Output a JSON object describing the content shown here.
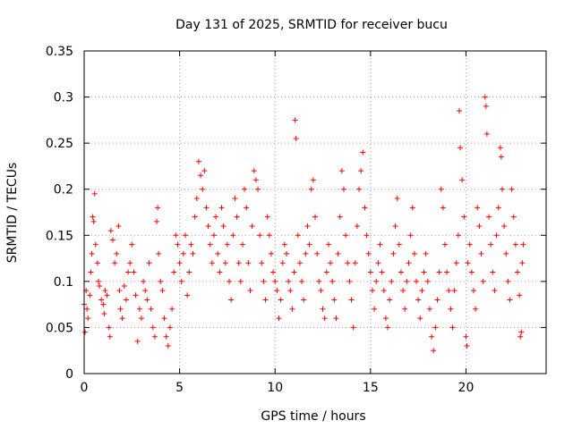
{
  "chart_data": {
    "type": "scatter",
    "title": "Day 131 of 2025, SRMTID for receiver bucu",
    "xlabel": "GPS time / hours",
    "ylabel": "SRMTID / TECUs",
    "xlim": [
      0,
      24.2
    ],
    "ylim": [
      0,
      0.35
    ],
    "x_ticks": [
      0,
      5,
      10,
      15,
      20
    ],
    "x_tick_labels": [
      "0",
      "5",
      "10",
      "15",
      "20"
    ],
    "y_ticks": [
      0,
      0.05,
      0.1,
      0.15,
      0.2,
      0.25,
      0.3,
      0.35
    ],
    "y_tick_labels": [
      "0",
      "0.05",
      "0.1",
      "0.15",
      "0.2",
      "0.25",
      "0.3",
      "0.35"
    ],
    "grid": true,
    "marker": "plus",
    "color": "#ff0000",
    "series": [
      {
        "name": "SRMTID",
        "points": [
          [
            0.0,
            0.075
          ],
          [
            0.05,
            0.045
          ],
          [
            0.1,
            0.09
          ],
          [
            0.15,
            0.07
          ],
          [
            0.2,
            0.06
          ],
          [
            0.3,
            0.085
          ],
          [
            0.35,
            0.11
          ],
          [
            0.4,
            0.13
          ],
          [
            0.45,
            0.17
          ],
          [
            0.5,
            0.165
          ],
          [
            0.55,
            0.195
          ],
          [
            0.6,
            0.14
          ],
          [
            0.7,
            0.12
          ],
          [
            0.75,
            0.1
          ],
          [
            0.8,
            0.095
          ],
          [
            0.9,
            0.08
          ],
          [
            1.0,
            0.075
          ],
          [
            1.05,
            0.065
          ],
          [
            1.1,
            0.09
          ],
          [
            1.2,
            0.085
          ],
          [
            1.3,
            0.05
          ],
          [
            1.35,
            0.04
          ],
          [
            1.4,
            0.155
          ],
          [
            1.5,
            0.145
          ],
          [
            1.6,
            0.12
          ],
          [
            1.7,
            0.13
          ],
          [
            1.8,
            0.16
          ],
          [
            1.85,
            0.09
          ],
          [
            1.9,
            0.07
          ],
          [
            2.0,
            0.06
          ],
          [
            2.1,
            0.095
          ],
          [
            2.2,
            0.08
          ],
          [
            2.3,
            0.11
          ],
          [
            2.4,
            0.12
          ],
          [
            2.5,
            0.14
          ],
          [
            2.6,
            0.11
          ],
          [
            2.7,
            0.085
          ],
          [
            2.8,
            0.035
          ],
          [
            2.9,
            0.07
          ],
          [
            3.0,
            0.06
          ],
          [
            3.1,
            0.1
          ],
          [
            3.2,
            0.09
          ],
          [
            3.3,
            0.08
          ],
          [
            3.4,
            0.12
          ],
          [
            3.5,
            0.07
          ],
          [
            3.6,
            0.05
          ],
          [
            3.7,
            0.04
          ],
          [
            3.8,
            0.165
          ],
          [
            3.85,
            0.18
          ],
          [
            3.9,
            0.13
          ],
          [
            4.0,
            0.1
          ],
          [
            4.1,
            0.09
          ],
          [
            4.2,
            0.06
          ],
          [
            4.3,
            0.04
          ],
          [
            4.4,
            0.03
          ],
          [
            4.5,
            0.05
          ],
          [
            4.6,
            0.07
          ],
          [
            4.7,
            0.11
          ],
          [
            4.8,
            0.15
          ],
          [
            4.9,
            0.14
          ],
          [
            5.0,
            0.12
          ],
          [
            5.1,
            0.1
          ],
          [
            5.2,
            0.13
          ],
          [
            5.3,
            0.15
          ],
          [
            5.4,
            0.085
          ],
          [
            5.5,
            0.11
          ],
          [
            5.6,
            0.14
          ],
          [
            5.7,
            0.13
          ],
          [
            5.8,
            0.17
          ],
          [
            5.9,
            0.19
          ],
          [
            6.0,
            0.23
          ],
          [
            6.1,
            0.215
          ],
          [
            6.2,
            0.2
          ],
          [
            6.3,
            0.22
          ],
          [
            6.4,
            0.18
          ],
          [
            6.5,
            0.16
          ],
          [
            6.6,
            0.14
          ],
          [
            6.7,
            0.12
          ],
          [
            6.8,
            0.15
          ],
          [
            6.9,
            0.17
          ],
          [
            7.0,
            0.13
          ],
          [
            7.1,
            0.11
          ],
          [
            7.2,
            0.18
          ],
          [
            7.3,
            0.16
          ],
          [
            7.4,
            0.12
          ],
          [
            7.5,
            0.14
          ],
          [
            7.6,
            0.1
          ],
          [
            7.7,
            0.08
          ],
          [
            7.8,
            0.15
          ],
          [
            7.9,
            0.19
          ],
          [
            8.0,
            0.17
          ],
          [
            8.1,
            0.12
          ],
          [
            8.2,
            0.1
          ],
          [
            8.3,
            0.14
          ],
          [
            8.4,
            0.2
          ],
          [
            8.5,
            0.18
          ],
          [
            8.6,
            0.12
          ],
          [
            8.7,
            0.09
          ],
          [
            8.8,
            0.16
          ],
          [
            8.9,
            0.22
          ],
          [
            9.0,
            0.21
          ],
          [
            9.1,
            0.2
          ],
          [
            9.2,
            0.15
          ],
          [
            9.3,
            0.12
          ],
          [
            9.4,
            0.1
          ],
          [
            9.5,
            0.08
          ],
          [
            9.6,
            0.17
          ],
          [
            9.7,
            0.15
          ],
          [
            9.8,
            0.13
          ],
          [
            9.9,
            0.11
          ],
          [
            10.0,
            0.1
          ],
          [
            10.1,
            0.09
          ],
          [
            10.2,
            0.06
          ],
          [
            10.3,
            0.08
          ],
          [
            10.4,
            0.12
          ],
          [
            10.5,
            0.14
          ],
          [
            10.6,
            0.13
          ],
          [
            10.7,
            0.1
          ],
          [
            10.8,
            0.09
          ],
          [
            10.9,
            0.07
          ],
          [
            11.0,
            0.11
          ],
          [
            11.05,
            0.275
          ],
          [
            11.1,
            0.255
          ],
          [
            11.2,
            0.15
          ],
          [
            11.3,
            0.12
          ],
          [
            11.4,
            0.1
          ],
          [
            11.5,
            0.08
          ],
          [
            11.6,
            0.13
          ],
          [
            11.7,
            0.16
          ],
          [
            11.8,
            0.14
          ],
          [
            11.9,
            0.2
          ],
          [
            12.0,
            0.21
          ],
          [
            12.1,
            0.17
          ],
          [
            12.2,
            0.13
          ],
          [
            12.3,
            0.1
          ],
          [
            12.4,
            0.09
          ],
          [
            12.5,
            0.07
          ],
          [
            12.6,
            0.06
          ],
          [
            12.7,
            0.11
          ],
          [
            12.8,
            0.14
          ],
          [
            12.9,
            0.12
          ],
          [
            13.0,
            0.1
          ],
          [
            13.1,
            0.08
          ],
          [
            13.2,
            0.06
          ],
          [
            13.3,
            0.13
          ],
          [
            13.4,
            0.17
          ],
          [
            13.5,
            0.22
          ],
          [
            13.6,
            0.2
          ],
          [
            13.7,
            0.15
          ],
          [
            13.8,
            0.12
          ],
          [
            13.9,
            0.1
          ],
          [
            14.0,
            0.08
          ],
          [
            14.1,
            0.05
          ],
          [
            14.2,
            0.12
          ],
          [
            14.3,
            0.16
          ],
          [
            14.4,
            0.2
          ],
          [
            14.5,
            0.22
          ],
          [
            14.6,
            0.24
          ],
          [
            14.7,
            0.18
          ],
          [
            14.8,
            0.15
          ],
          [
            14.9,
            0.13
          ],
          [
            15.0,
            0.11
          ],
          [
            15.1,
            0.09
          ],
          [
            15.2,
            0.07
          ],
          [
            15.3,
            0.1
          ],
          [
            15.4,
            0.12
          ],
          [
            15.5,
            0.14
          ],
          [
            15.6,
            0.11
          ],
          [
            15.7,
            0.09
          ],
          [
            15.8,
            0.06
          ],
          [
            15.9,
            0.05
          ],
          [
            16.0,
            0.08
          ],
          [
            16.1,
            0.1
          ],
          [
            16.2,
            0.13
          ],
          [
            16.3,
            0.16
          ],
          [
            16.4,
            0.19
          ],
          [
            16.5,
            0.14
          ],
          [
            16.6,
            0.11
          ],
          [
            16.7,
            0.09
          ],
          [
            16.8,
            0.07
          ],
          [
            16.9,
            0.1
          ],
          [
            17.0,
            0.12
          ],
          [
            17.1,
            0.15
          ],
          [
            17.2,
            0.18
          ],
          [
            17.3,
            0.13
          ],
          [
            17.4,
            0.1
          ],
          [
            17.5,
            0.08
          ],
          [
            17.6,
            0.06
          ],
          [
            17.7,
            0.09
          ],
          [
            17.8,
            0.11
          ],
          [
            17.9,
            0.13
          ],
          [
            18.0,
            0.1
          ],
          [
            18.1,
            0.07
          ],
          [
            18.2,
            0.04
          ],
          [
            18.3,
            0.025
          ],
          [
            18.4,
            0.05
          ],
          [
            18.5,
            0.08
          ],
          [
            18.6,
            0.11
          ],
          [
            18.7,
            0.2
          ],
          [
            18.8,
            0.18
          ],
          [
            18.9,
            0.14
          ],
          [
            19.0,
            0.11
          ],
          [
            19.1,
            0.09
          ],
          [
            19.2,
            0.07
          ],
          [
            19.3,
            0.05
          ],
          [
            19.4,
            0.09
          ],
          [
            19.5,
            0.12
          ],
          [
            19.6,
            0.15
          ],
          [
            19.65,
            0.285
          ],
          [
            19.7,
            0.245
          ],
          [
            19.8,
            0.21
          ],
          [
            19.9,
            0.17
          ],
          [
            20.0,
            0.04
          ],
          [
            20.05,
            0.03
          ],
          [
            20.1,
            0.12
          ],
          [
            20.2,
            0.14
          ],
          [
            20.3,
            0.11
          ],
          [
            20.4,
            0.09
          ],
          [
            20.5,
            0.07
          ],
          [
            20.6,
            0.18
          ],
          [
            20.7,
            0.16
          ],
          [
            20.8,
            0.13
          ],
          [
            20.9,
            0.1
          ],
          [
            21.0,
            0.3
          ],
          [
            21.05,
            0.29
          ],
          [
            21.1,
            0.26
          ],
          [
            21.2,
            0.17
          ],
          [
            21.3,
            0.14
          ],
          [
            21.4,
            0.11
          ],
          [
            21.5,
            0.09
          ],
          [
            21.6,
            0.15
          ],
          [
            21.7,
            0.18
          ],
          [
            21.8,
            0.245
          ],
          [
            21.85,
            0.235
          ],
          [
            21.9,
            0.2
          ],
          [
            22.0,
            0.16
          ],
          [
            22.1,
            0.13
          ],
          [
            22.2,
            0.1
          ],
          [
            22.3,
            0.08
          ],
          [
            22.4,
            0.2
          ],
          [
            22.5,
            0.17
          ],
          [
            22.6,
            0.14
          ],
          [
            22.7,
            0.11
          ],
          [
            22.8,
            0.085
          ],
          [
            22.85,
            0.04
          ],
          [
            22.9,
            0.045
          ],
          [
            22.95,
            0.12
          ],
          [
            23.0,
            0.14
          ]
        ]
      }
    ]
  }
}
